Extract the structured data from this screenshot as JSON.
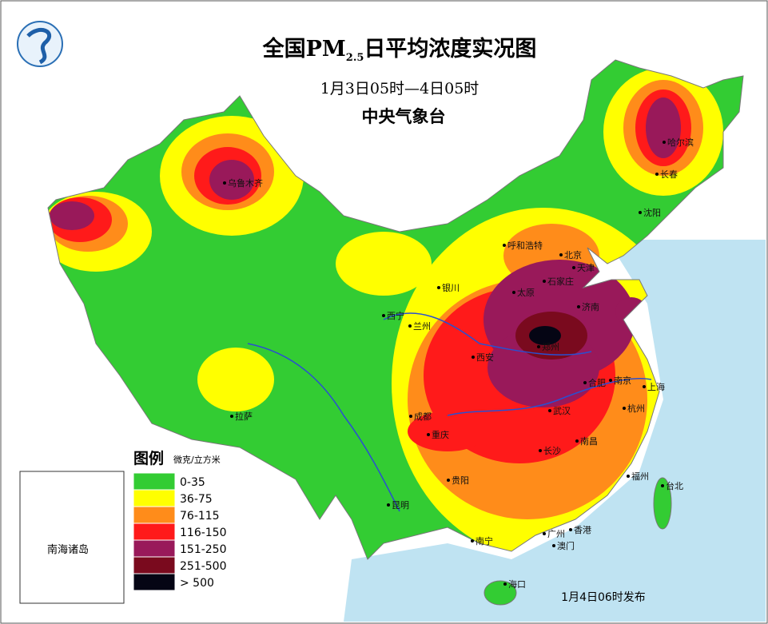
{
  "header": {
    "title_prefix": "全国PM",
    "title_sub": "2.5",
    "title_suffix": "日平均浓度实况图",
    "period": "1月3日05时—4日05时",
    "agency": "中央气象台"
  },
  "legend": {
    "title": "图例",
    "unit": "微克/立方米",
    "items": [
      {
        "label": "0-35",
        "color": "#33cc33"
      },
      {
        "label": "36-75",
        "color": "#ffff00"
      },
      {
        "label": "76-115",
        "color": "#ff8c1a"
      },
      {
        "label": "116-150",
        "color": "#ff1a1a"
      },
      {
        "label": "151-250",
        "color": "#99195a"
      },
      {
        "label": "251-500",
        "color": "#7a0a1e"
      },
      {
        "label": "> 500",
        "color": "#050514"
      }
    ]
  },
  "map": {
    "inset_label": "南海诸岛",
    "cities": [
      "乌鲁木齐",
      "哈尔滨",
      "长春",
      "沈阳",
      "呼和浩特",
      "北京",
      "天津",
      "银川",
      "太原",
      "石家庄",
      "济南",
      "西宁",
      "兰州",
      "郑州",
      "西安",
      "合肥",
      "南京",
      "上海",
      "成都",
      "武汉",
      "杭州",
      "重庆",
      "南昌",
      "长沙",
      "拉萨",
      "贵阳",
      "福州",
      "台北",
      "昆明",
      "南宁",
      "香港",
      "广州",
      "澳门",
      "海口"
    ]
  },
  "footer": {
    "issued": "1月4日06时发布"
  }
}
